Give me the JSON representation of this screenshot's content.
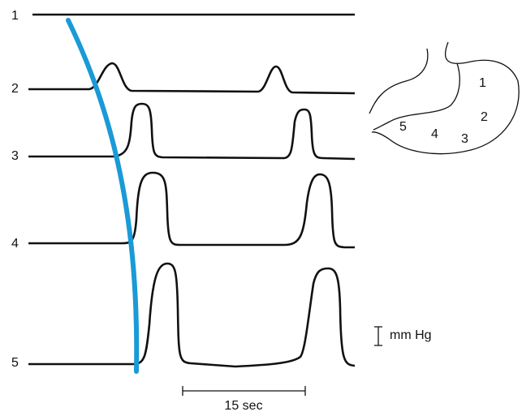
{
  "traces": [
    {
      "label": "1"
    },
    {
      "label": "2"
    },
    {
      "label": "3"
    },
    {
      "label": "4"
    },
    {
      "label": "5"
    }
  ],
  "stomach_regions": [
    {
      "label": "1"
    },
    {
      "label": "2"
    },
    {
      "label": "3"
    },
    {
      "label": "4"
    },
    {
      "label": "5"
    }
  ],
  "pressure_scale": "mm Hg",
  "time_scale": "15 sec"
}
